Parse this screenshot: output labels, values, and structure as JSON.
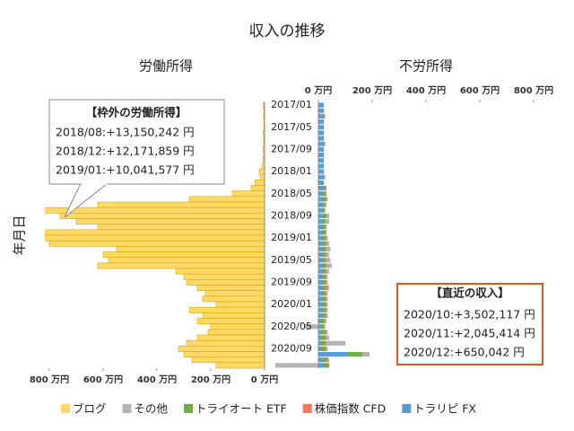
{
  "chart_data": {
    "type": "bar",
    "title": "収入の推移",
    "left_title": "労働所得",
    "right_title": "不労所得",
    "y_label": "年月日",
    "categories": [
      "2017/01",
      null,
      null,
      null,
      "2017/05",
      null,
      null,
      null,
      "2017/09",
      null,
      null,
      null,
      "2018/01",
      null,
      null,
      null,
      "2018/05",
      null,
      null,
      null,
      "2018/09",
      null,
      null,
      null,
      "2019/01",
      null,
      null,
      null,
      "2019/05",
      null,
      null,
      null,
      "2019/09",
      null,
      null,
      null,
      "2020/01",
      null,
      null,
      null,
      "2020/05",
      null,
      null,
      null,
      "2020/09",
      null,
      null,
      null
    ],
    "left_xlim": [
      800,
      0
    ],
    "left_xticks": [
      {
        "value": 800,
        "label": "800 万円"
      },
      {
        "value": 600,
        "label": "600 万円"
      },
      {
        "value": 400,
        "label": "400 万円"
      },
      {
        "value": 200,
        "label": "200 万円"
      },
      {
        "value": 0,
        "label": "0 万円"
      }
    ],
    "right_xlim": [
      0,
      800
    ],
    "right_xticks": [
      {
        "value": 0,
        "label": "0 万円"
      },
      {
        "value": 200,
        "label": "200 万円"
      },
      {
        "value": 400,
        "label": "400 万円"
      },
      {
        "value": 600,
        "label": "600 万円"
      },
      {
        "value": 800,
        "label": "800 万円"
      }
    ],
    "series": [
      {
        "name": "ブログ",
        "side": "left",
        "color": "#ffd966",
        "values": [
          5,
          3,
          4,
          2,
          3,
          5,
          4,
          3,
          6,
          4,
          5,
          8,
          20,
          15,
          35,
          50,
          120,
          280,
          620,
          1315,
          760,
          700,
          620,
          1217,
          1004,
          800,
          550,
          600,
          580,
          620,
          330,
          300,
          290,
          250,
          220,
          230,
          180,
          280,
          230,
          250,
          200,
          210,
          250,
          290,
          320,
          300,
          270,
          180
        ]
      },
      {
        "name": "その他",
        "side": "right",
        "color": "#b4b4b4",
        "values": [
          0,
          0,
          0,
          0,
          0,
          0,
          0,
          0,
          0,
          0,
          0,
          0,
          0,
          0,
          0,
          0,
          0,
          5,
          5,
          0,
          10,
          15,
          0,
          0,
          5,
          10,
          15,
          10,
          15,
          20,
          10,
          5,
          5,
          5,
          5,
          5,
          5,
          5,
          5,
          5,
          -50,
          5,
          10,
          70,
          5,
          25,
          5,
          -160
        ]
      },
      {
        "name": "トライオート ETF",
        "side": "right",
        "color": "#70ad47",
        "values": [
          0,
          0,
          0,
          0,
          0,
          0,
          0,
          0,
          0,
          0,
          0,
          0,
          0,
          0,
          0,
          5,
          10,
          10,
          10,
          10,
          15,
          10,
          10,
          10,
          10,
          10,
          10,
          10,
          10,
          10,
          10,
          10,
          10,
          10,
          10,
          10,
          10,
          10,
          10,
          10,
          10,
          15,
          15,
          15,
          15,
          50,
          15,
          15
        ]
      },
      {
        "name": "株価指数 CFD",
        "side": "right",
        "color": "#f07b5a",
        "values": [
          0,
          0,
          5,
          0,
          0,
          0,
          0,
          5,
          0,
          0,
          0,
          0,
          0,
          5,
          0,
          5,
          5,
          5,
          0,
          0,
          0,
          0,
          5,
          5,
          5,
          5,
          5,
          5,
          5,
          5,
          5,
          5,
          5,
          10,
          5,
          5,
          5,
          5,
          5,
          5,
          5,
          5,
          5,
          5,
          5,
          5,
          5,
          5
        ]
      },
      {
        "name": "トラリピ FX",
        "side": "right",
        "color": "#5b9bd5",
        "values": [
          20,
          20,
          20,
          20,
          20,
          20,
          20,
          20,
          20,
          20,
          20,
          20,
          20,
          20,
          20,
          20,
          15,
          15,
          15,
          15,
          15,
          15,
          15,
          15,
          15,
          15,
          15,
          15,
          15,
          15,
          15,
          15,
          15,
          15,
          15,
          15,
          15,
          15,
          15,
          10,
          10,
          10,
          10,
          10,
          10,
          110,
          15,
          20
        ]
      }
    ],
    "stack_order": [
      "トラリピ FX",
      "トライオート ETF",
      "株価指数 CFD",
      "その他"
    ],
    "annotations": [
      {
        "title": "【枠外の労働所得】",
        "lines": [
          "2018/08:+13,150,242 円",
          "2018/12:+12,171,859 円",
          "2019/01:+10,041,577 円"
        ]
      },
      {
        "title": "【直近の収入】",
        "lines": [
          "2020/10:+3,502,117 円",
          "2020/11:+2,045,414 円",
          "2020/12:+650,042 円"
        ]
      }
    ]
  }
}
